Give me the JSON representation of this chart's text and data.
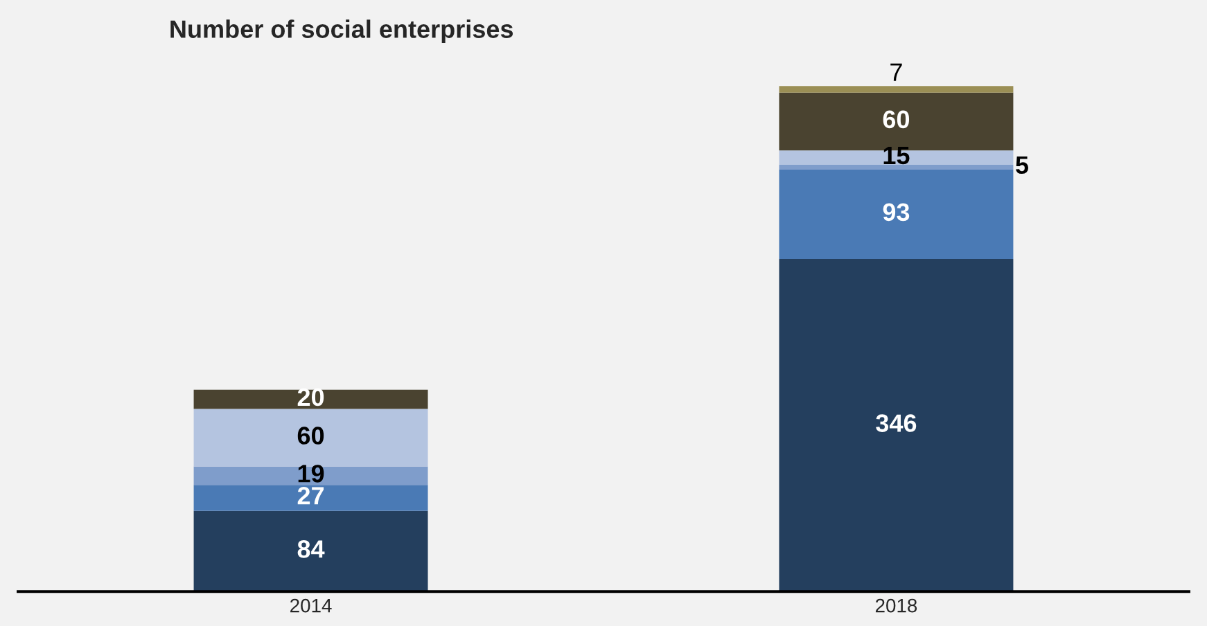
{
  "chart_data": {
    "type": "bar",
    "title": "Number of social enterprises",
    "categories": [
      "2014",
      "2018"
    ],
    "stacked": true,
    "data_labels": true,
    "legend": false,
    "grid": false,
    "series": [
      {
        "color": "#243f5e",
        "values": [
          84,
          346
        ]
      },
      {
        "color": "#4a7ab5",
        "values": [
          27,
          93
        ]
      },
      {
        "color": "#7f9dcb",
        "values": [
          19,
          5
        ]
      },
      {
        "color": "#b4c4e0",
        "values": [
          60,
          15
        ]
      },
      {
        "color": "#4a4330",
        "values": [
          20,
          60
        ]
      },
      {
        "color": "#9b8f55",
        "values": [
          null,
          7
        ]
      }
    ]
  }
}
